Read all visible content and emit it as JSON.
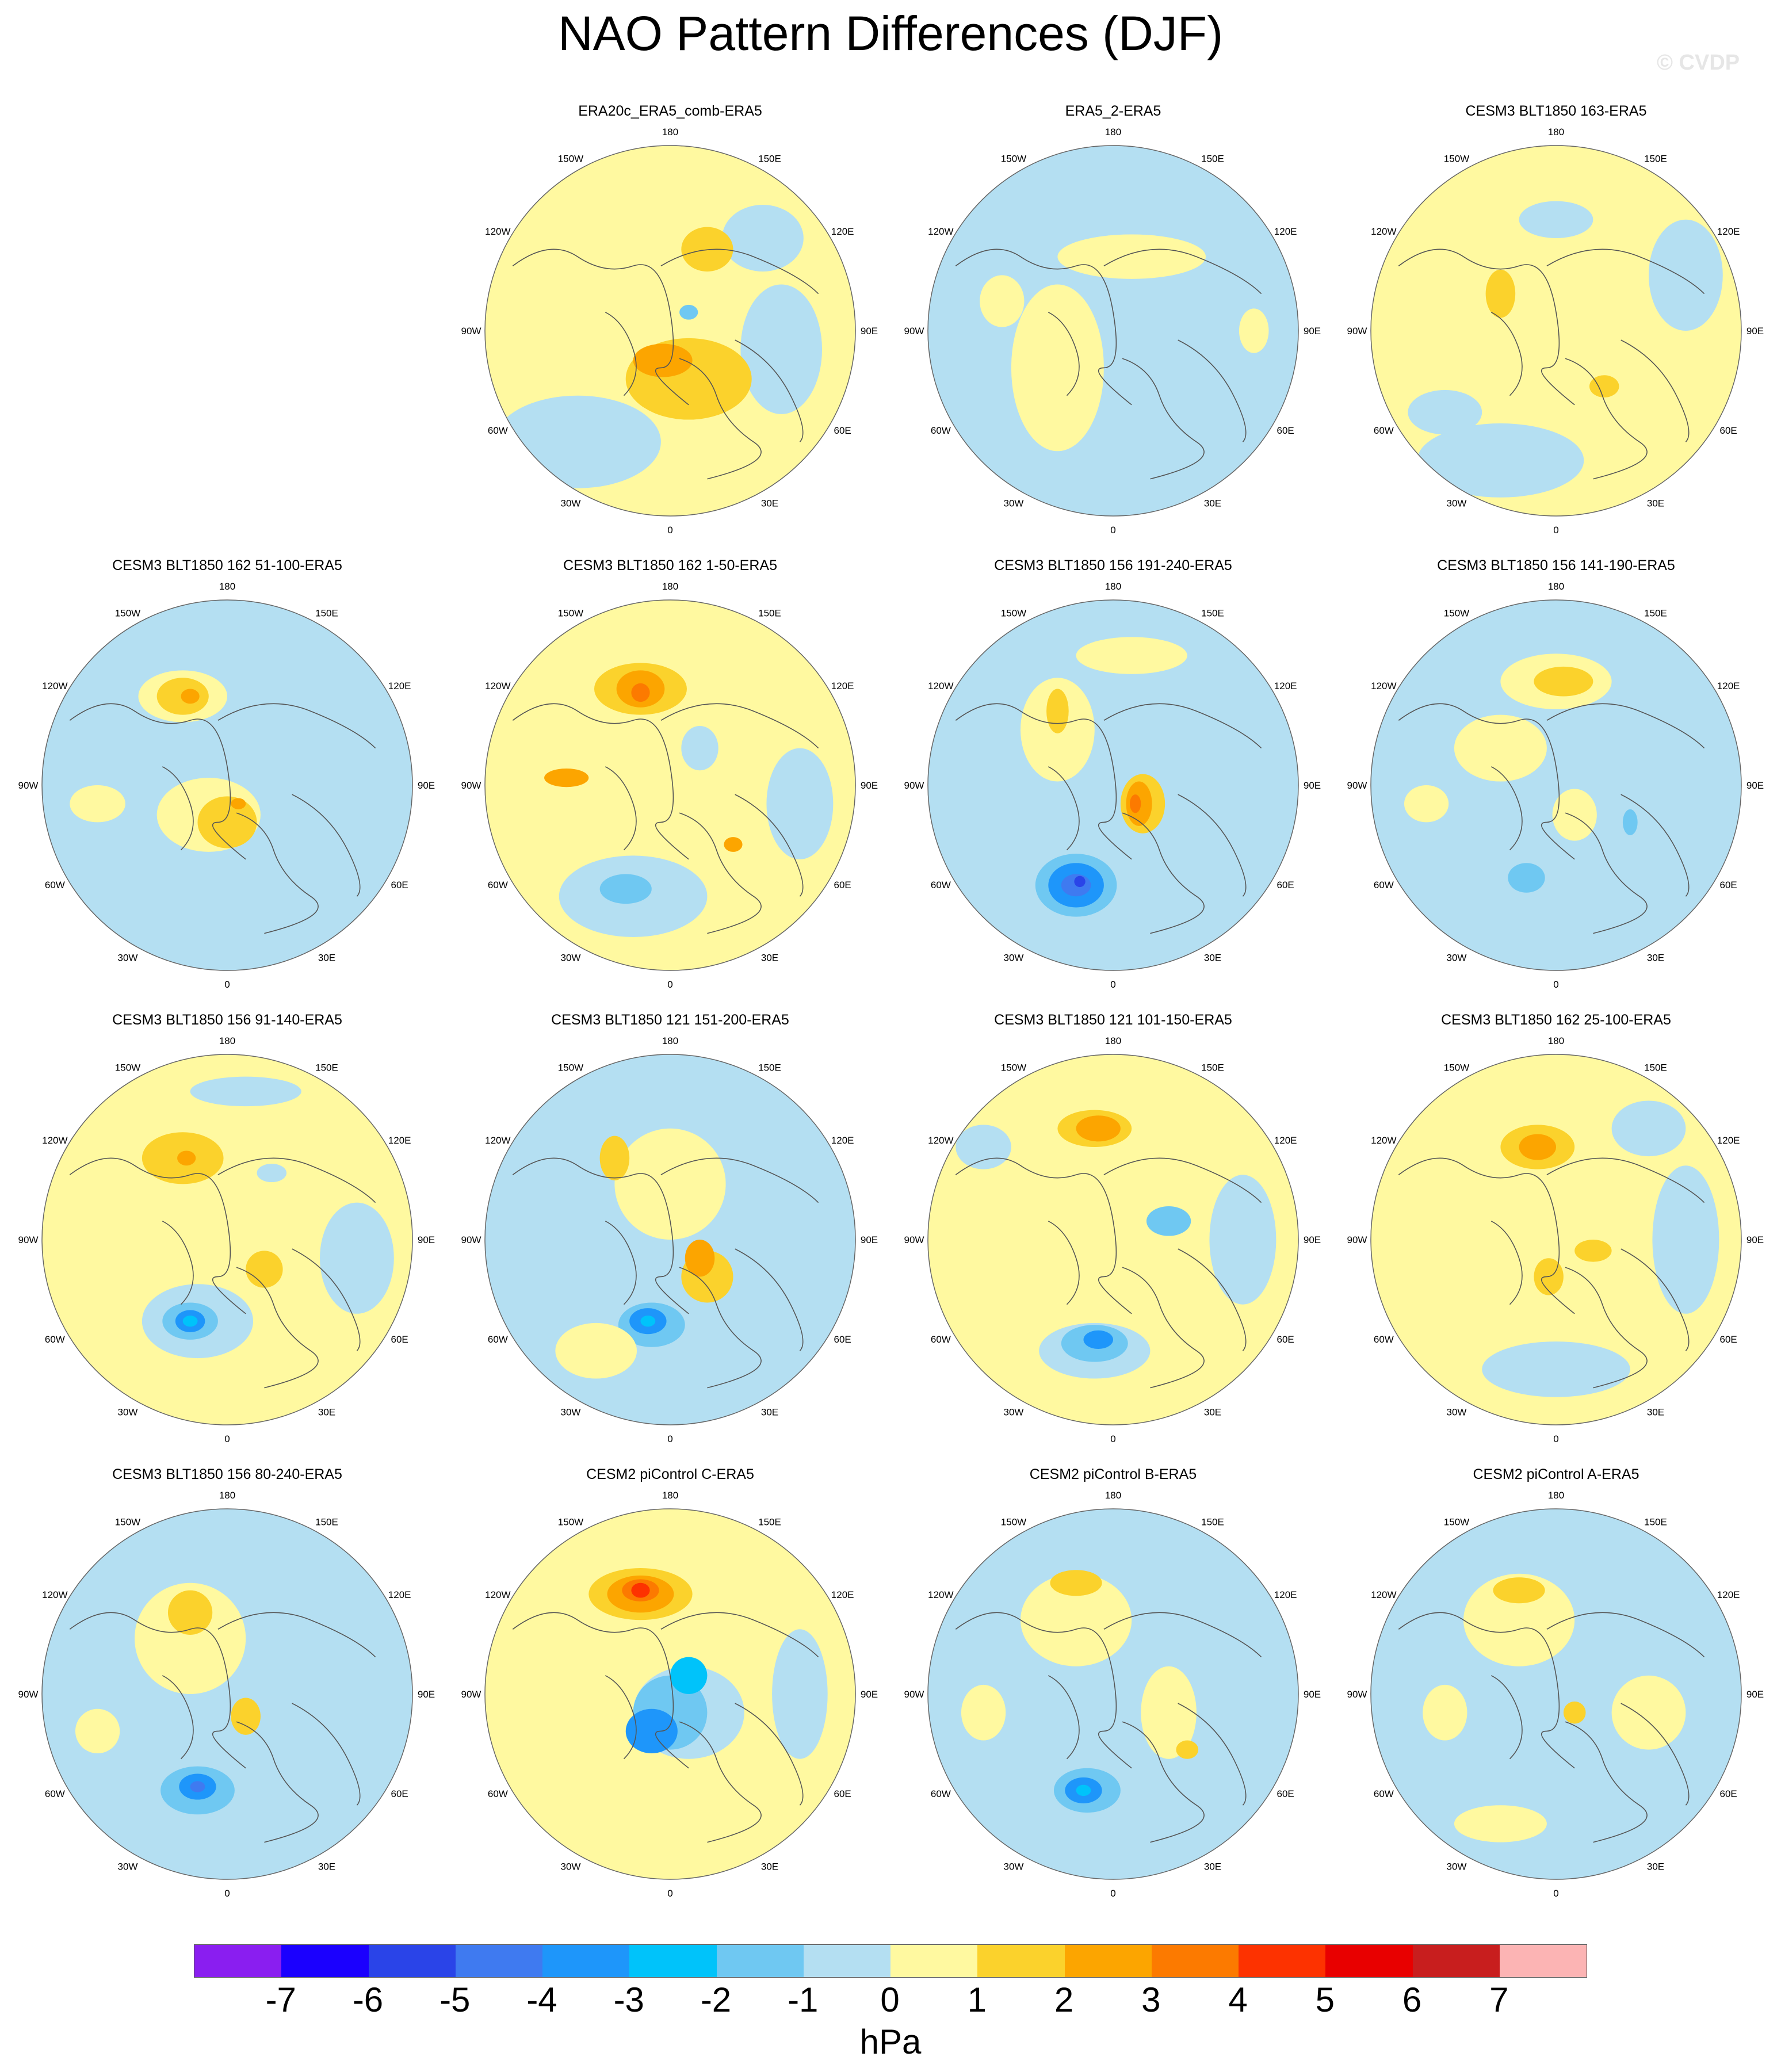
{
  "title": "NAO Pattern Differences (DJF)",
  "watermark": "© CVDP",
  "lon_labels": [
    "180",
    "150E",
    "120E",
    "90E",
    "60E",
    "30E",
    "0",
    "30W",
    "60W",
    "90W",
    "120W",
    "150W"
  ],
  "colorbar": {
    "colors": [
      "#8a1ef0",
      "#1b00fe",
      "#2a44e8",
      "#3f7af0",
      "#1e96fa",
      "#00c3fa",
      "#6fc8f2",
      "#b4dff2",
      "#fff9a0",
      "#fbd22c",
      "#fca500",
      "#fc7a00",
      "#fd3200",
      "#e80000",
      "#c81e1e",
      "#fcb4b4"
    ],
    "labels": [
      "-7",
      "-6",
      "-5",
      "-4",
      "-3",
      "-2",
      "-1",
      "0",
      "1",
      "2",
      "3",
      "4",
      "5",
      "6",
      "7"
    ],
    "units": "hPa"
  },
  "panels": [
    {
      "title": "ERA20c_ERA5_comb-ERA5",
      "row": 0,
      "col": 1,
      "base": "pos",
      "blobs": [
        [
          0.55,
          0.63,
          0.34,
          0.22,
          "#fbd22c"
        ],
        [
          0.48,
          0.58,
          0.16,
          0.09,
          "#fca500"
        ],
        [
          0.6,
          0.28,
          0.14,
          0.12,
          "#fbd22c"
        ],
        [
          0.35,
          0.35,
          0.14,
          0.22,
          "#fff9a0"
        ]
      ],
      "negs": [
        [
          0.25,
          0.8,
          0.45,
          0.25,
          "#b4dff2"
        ],
        [
          0.8,
          0.55,
          0.22,
          0.35,
          "#b4dff2"
        ],
        [
          0.75,
          0.25,
          0.22,
          0.18,
          "#b4dff2"
        ],
        [
          0.55,
          0.45,
          0.05,
          0.04,
          "#6fc8f2"
        ]
      ]
    },
    {
      "title": "ERA5_2-ERA5",
      "row": 0,
      "col": 2,
      "base": "neg",
      "blobs": [
        [
          0.35,
          0.6,
          0.25,
          0.45,
          "#fff9a0"
        ],
        [
          0.55,
          0.3,
          0.4,
          0.12,
          "#fff9a0"
        ],
        [
          0.2,
          0.42,
          0.12,
          0.14,
          "#fff9a0"
        ],
        [
          0.88,
          0.5,
          0.08,
          0.12,
          "#fff9a0"
        ]
      ],
      "negs": []
    },
    {
      "title": "CESM3 BLT1850 163-ERA5",
      "row": 0,
      "col": 3,
      "base": "pos",
      "blobs": [
        [
          0.35,
          0.4,
          0.08,
          0.13,
          "#fbd22c"
        ],
        [
          0.63,
          0.65,
          0.08,
          0.06,
          "#fbd22c"
        ]
      ],
      "negs": [
        [
          0.35,
          0.85,
          0.45,
          0.2,
          "#b4dff2"
        ],
        [
          0.85,
          0.35,
          0.2,
          0.3,
          "#b4dff2"
        ],
        [
          0.5,
          0.2,
          0.2,
          0.1,
          "#b4dff2"
        ],
        [
          0.2,
          0.72,
          0.2,
          0.12,
          "#b4dff2"
        ]
      ]
    },
    {
      "title": "CESM3 BLT1850 162 51-100-ERA5",
      "row": 1,
      "col": 0,
      "base": "neg",
      "blobs": [
        [
          0.38,
          0.26,
          0.24,
          0.14,
          "#fff9a0"
        ],
        [
          0.38,
          0.26,
          0.14,
          0.1,
          "#fbd22c"
        ],
        [
          0.4,
          0.26,
          0.05,
          0.04,
          "#fca500"
        ],
        [
          0.45,
          0.58,
          0.28,
          0.2,
          "#fff9a0"
        ],
        [
          0.5,
          0.6,
          0.16,
          0.14,
          "#fbd22c"
        ],
        [
          0.53,
          0.55,
          0.04,
          0.03,
          "#fca500"
        ],
        [
          0.15,
          0.55,
          0.15,
          0.1,
          "#fff9a0"
        ]
      ],
      "negs": []
    },
    {
      "title": "CESM3 BLT1850 162 1-50-ERA5",
      "row": 1,
      "col": 1,
      "base": "pos",
      "blobs": [
        [
          0.42,
          0.24,
          0.25,
          0.14,
          "#fbd22c"
        ],
        [
          0.42,
          0.24,
          0.13,
          0.1,
          "#fca500"
        ],
        [
          0.42,
          0.25,
          0.05,
          0.05,
          "#fc7a00"
        ],
        [
          0.22,
          0.48,
          0.12,
          0.05,
          "#fca500"
        ],
        [
          0.67,
          0.66,
          0.05,
          0.04,
          "#fca500"
        ]
      ],
      "negs": [
        [
          0.4,
          0.8,
          0.4,
          0.22,
          "#b4dff2"
        ],
        [
          0.38,
          0.78,
          0.14,
          0.08,
          "#6fc8f2"
        ],
        [
          0.58,
          0.4,
          0.1,
          0.12,
          "#b4dff2"
        ],
        [
          0.85,
          0.55,
          0.18,
          0.3,
          "#b4dff2"
        ]
      ]
    },
    {
      "title": "CESM3 BLT1850 156 191-240-ERA5",
      "row": 1,
      "col": 2,
      "base": "neg",
      "blobs": [
        [
          0.35,
          0.35,
          0.2,
          0.28,
          "#fff9a0"
        ],
        [
          0.35,
          0.3,
          0.06,
          0.12,
          "#fbd22c"
        ],
        [
          0.58,
          0.55,
          0.12,
          0.16,
          "#fbd22c"
        ],
        [
          0.57,
          0.55,
          0.07,
          0.12,
          "#fca500"
        ],
        [
          0.56,
          0.55,
          0.03,
          0.05,
          "#fc7a00"
        ],
        [
          0.55,
          0.15,
          0.3,
          0.1,
          "#fff9a0"
        ]
      ],
      "negs": [
        [
          0.4,
          0.77,
          0.22,
          0.17,
          "#6fc8f2"
        ],
        [
          0.4,
          0.77,
          0.15,
          0.12,
          "#1e96fa"
        ],
        [
          0.4,
          0.77,
          0.08,
          0.06,
          "#3f7af0"
        ],
        [
          0.41,
          0.76,
          0.03,
          0.03,
          "#2a44e8"
        ]
      ]
    },
    {
      "title": "CESM3 BLT1850 156 141-190-ERA5",
      "row": 1,
      "col": 3,
      "base": "neg",
      "blobs": [
        [
          0.5,
          0.22,
          0.3,
          0.15,
          "#fff9a0"
        ],
        [
          0.52,
          0.22,
          0.16,
          0.08,
          "#fbd22c"
        ],
        [
          0.35,
          0.4,
          0.25,
          0.18,
          "#fff9a0"
        ],
        [
          0.55,
          0.58,
          0.12,
          0.14,
          "#fff9a0"
        ],
        [
          0.15,
          0.55,
          0.12,
          0.1,
          "#fff9a0"
        ]
      ],
      "negs": [
        [
          0.42,
          0.75,
          0.1,
          0.08,
          "#6fc8f2"
        ],
        [
          0.7,
          0.6,
          0.04,
          0.07,
          "#6fc8f2"
        ]
      ]
    },
    {
      "title": "CESM3 BLT1850 156 91-140-ERA5",
      "row": 2,
      "col": 0,
      "base": "pos",
      "blobs": [
        [
          0.38,
          0.28,
          0.22,
          0.14,
          "#fbd22c"
        ],
        [
          0.39,
          0.28,
          0.05,
          0.04,
          "#fca500"
        ],
        [
          0.6,
          0.58,
          0.1,
          0.1,
          "#fbd22c"
        ]
      ],
      "negs": [
        [
          0.42,
          0.72,
          0.3,
          0.2,
          "#b4dff2"
        ],
        [
          0.4,
          0.72,
          0.15,
          0.1,
          "#6fc8f2"
        ],
        [
          0.4,
          0.72,
          0.08,
          0.06,
          "#1e96fa"
        ],
        [
          0.4,
          0.72,
          0.04,
          0.03,
          "#00c3fa"
        ],
        [
          0.85,
          0.55,
          0.2,
          0.3,
          "#b4dff2"
        ],
        [
          0.55,
          0.1,
          0.3,
          0.08,
          "#b4dff2"
        ],
        [
          0.62,
          0.32,
          0.08,
          0.05,
          "#b4dff2"
        ]
      ]
    },
    {
      "title": "CESM3 BLT1850 121 151-200-ERA5",
      "row": 2,
      "col": 1,
      "base": "neg",
      "blobs": [
        [
          0.5,
          0.35,
          0.3,
          0.3,
          "#fff9a0"
        ],
        [
          0.35,
          0.28,
          0.08,
          0.12,
          "#fbd22c"
        ],
        [
          0.6,
          0.6,
          0.14,
          0.14,
          "#fbd22c"
        ],
        [
          0.58,
          0.55,
          0.08,
          0.1,
          "#fca500"
        ],
        [
          0.3,
          0.8,
          0.22,
          0.15,
          "#fff9a0"
        ]
      ],
      "negs": [
        [
          0.45,
          0.73,
          0.18,
          0.12,
          "#6fc8f2"
        ],
        [
          0.44,
          0.72,
          0.1,
          0.07,
          "#1e96fa"
        ],
        [
          0.44,
          0.72,
          0.04,
          0.03,
          "#00c3fa"
        ]
      ]
    },
    {
      "title": "CESM3 BLT1850 121 101-150-ERA5",
      "row": 2,
      "col": 2,
      "base": "pos",
      "blobs": [
        [
          0.45,
          0.2,
          0.2,
          0.1,
          "#fbd22c"
        ],
        [
          0.46,
          0.2,
          0.12,
          0.07,
          "#fca500"
        ]
      ],
      "negs": [
        [
          0.45,
          0.8,
          0.3,
          0.15,
          "#b4dff2"
        ],
        [
          0.45,
          0.78,
          0.18,
          0.1,
          "#6fc8f2"
        ],
        [
          0.46,
          0.77,
          0.08,
          0.05,
          "#1e96fa"
        ],
        [
          0.85,
          0.5,
          0.18,
          0.35,
          "#b4dff2"
        ],
        [
          0.65,
          0.45,
          0.12,
          0.08,
          "#6fc8f2"
        ],
        [
          0.15,
          0.25,
          0.15,
          0.12,
          "#b4dff2"
        ]
      ]
    },
    {
      "title": "CESM3 BLT1850 162 25-100-ERA5",
      "row": 2,
      "col": 3,
      "base": "pos",
      "blobs": [
        [
          0.45,
          0.25,
          0.2,
          0.12,
          "#fbd22c"
        ],
        [
          0.45,
          0.25,
          0.1,
          0.07,
          "#fca500"
        ],
        [
          0.48,
          0.6,
          0.08,
          0.1,
          "#fbd22c"
        ],
        [
          0.6,
          0.53,
          0.1,
          0.06,
          "#fbd22c"
        ]
      ],
      "negs": [
        [
          0.5,
          0.85,
          0.4,
          0.15,
          "#b4dff2"
        ],
        [
          0.85,
          0.5,
          0.18,
          0.4,
          "#b4dff2"
        ],
        [
          0.75,
          0.2,
          0.2,
          0.15,
          "#b4dff2"
        ]
      ]
    },
    {
      "title": "CESM3 BLT1850 156 80-240-ERA5",
      "row": 3,
      "col": 0,
      "base": "neg",
      "blobs": [
        [
          0.4,
          0.35,
          0.3,
          0.3,
          "#fff9a0"
        ],
        [
          0.4,
          0.28,
          0.12,
          0.12,
          "#fbd22c"
        ],
        [
          0.55,
          0.56,
          0.08,
          0.1,
          "#fbd22c"
        ],
        [
          0.15,
          0.6,
          0.12,
          0.12,
          "#fff9a0"
        ]
      ],
      "negs": [
        [
          0.42,
          0.76,
          0.2,
          0.13,
          "#6fc8f2"
        ],
        [
          0.42,
          0.75,
          0.1,
          0.07,
          "#1e96fa"
        ],
        [
          0.42,
          0.75,
          0.04,
          0.03,
          "#3f7af0"
        ]
      ]
    },
    {
      "title": "CESM2 piControl C-ERA5",
      "row": 3,
      "col": 1,
      "base": "pos",
      "blobs": [
        [
          0.42,
          0.23,
          0.28,
          0.14,
          "#fbd22c"
        ],
        [
          0.42,
          0.23,
          0.18,
          0.1,
          "#fca500"
        ],
        [
          0.42,
          0.22,
          0.1,
          0.06,
          "#fc7a00"
        ],
        [
          0.42,
          0.22,
          0.05,
          0.04,
          "#fd3200"
        ]
      ],
      "negs": [
        [
          0.55,
          0.55,
          0.3,
          0.25,
          "#b4dff2"
        ],
        [
          0.5,
          0.55,
          0.2,
          0.2,
          "#6fc8f2"
        ],
        [
          0.45,
          0.6,
          0.14,
          0.12,
          "#1e96fa"
        ],
        [
          0.55,
          0.45,
          0.1,
          0.1,
          "#00c3fa"
        ],
        [
          0.85,
          0.5,
          0.15,
          0.35,
          "#b4dff2"
        ]
      ]
    },
    {
      "title": "CESM2 piControl B-ERA5",
      "row": 3,
      "col": 2,
      "base": "neg",
      "blobs": [
        [
          0.4,
          0.3,
          0.3,
          0.25,
          "#fff9a0"
        ],
        [
          0.4,
          0.2,
          0.14,
          0.07,
          "#fbd22c"
        ],
        [
          0.65,
          0.55,
          0.15,
          0.25,
          "#fff9a0"
        ],
        [
          0.7,
          0.65,
          0.06,
          0.05,
          "#fbd22c"
        ],
        [
          0.15,
          0.55,
          0.12,
          0.15,
          "#fff9a0"
        ]
      ],
      "negs": [
        [
          0.43,
          0.76,
          0.18,
          0.12,
          "#6fc8f2"
        ],
        [
          0.42,
          0.76,
          0.1,
          0.07,
          "#1e96fa"
        ],
        [
          0.42,
          0.76,
          0.04,
          0.03,
          "#00c3fa"
        ]
      ]
    },
    {
      "title": "CESM2 piControl A-ERA5",
      "row": 3,
      "col": 3,
      "base": "neg",
      "blobs": [
        [
          0.4,
          0.3,
          0.3,
          0.25,
          "#fff9a0"
        ],
        [
          0.4,
          0.22,
          0.14,
          0.07,
          "#fbd22c"
        ],
        [
          0.55,
          0.55,
          0.06,
          0.06,
          "#fbd22c"
        ],
        [
          0.75,
          0.55,
          0.2,
          0.2,
          "#fff9a0"
        ],
        [
          0.2,
          0.55,
          0.12,
          0.15,
          "#fff9a0"
        ],
        [
          0.35,
          0.85,
          0.25,
          0.1,
          "#fff9a0"
        ]
      ],
      "negs": []
    }
  ]
}
